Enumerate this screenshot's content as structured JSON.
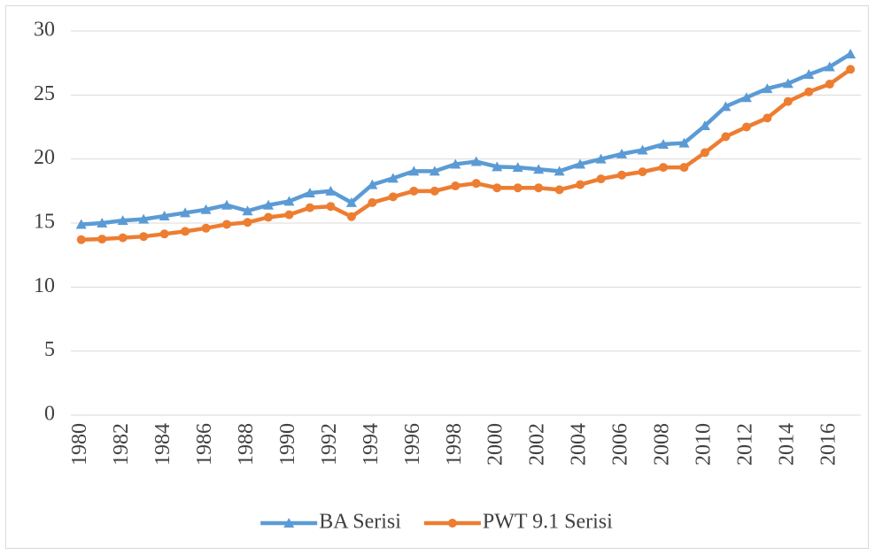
{
  "chart_data": {
    "type": "line",
    "categories": [
      "1980",
      null,
      "1982",
      null,
      "1984",
      null,
      "1986",
      null,
      "1988",
      null,
      "1990",
      null,
      "1992",
      null,
      "1994",
      null,
      "1996",
      null,
      "1998",
      null,
      "2000",
      null,
      "2002",
      null,
      "2004",
      null,
      "2006",
      null,
      "2008",
      null,
      "2010",
      null,
      "2012",
      null,
      "2014",
      null,
      "2016",
      null
    ],
    "series": [
      {
        "name": "BA Serisi",
        "color": "#5b9bd5",
        "marker": "triangle",
        "values": [
          14.9,
          15.0,
          15.2,
          15.3,
          15.55,
          15.8,
          16.05,
          16.4,
          15.95,
          16.4,
          16.7,
          17.35,
          17.5,
          16.6,
          18.0,
          18.5,
          19.05,
          19.05,
          19.6,
          19.8,
          19.4,
          19.35,
          19.2,
          19.05,
          19.6,
          20.0,
          20.4,
          20.7,
          21.15,
          21.25,
          22.6,
          24.1,
          24.8,
          25.5,
          25.9,
          26.6,
          27.2,
          28.2
        ]
      },
      {
        "name": "PWT 9.1 Serisi",
        "color": "#ed7d31",
        "marker": "circle",
        "values": [
          13.7,
          13.75,
          13.85,
          13.95,
          14.15,
          14.35,
          14.6,
          14.9,
          15.05,
          15.45,
          15.65,
          16.2,
          16.3,
          15.5,
          16.6,
          17.05,
          17.5,
          17.5,
          17.9,
          18.1,
          17.75,
          17.75,
          17.75,
          17.6,
          18.0,
          18.45,
          18.75,
          19.0,
          19.35,
          19.35,
          20.5,
          21.75,
          22.5,
          23.2,
          24.5,
          25.25,
          25.85,
          27.0
        ]
      }
    ],
    "ylim": [
      0,
      30
    ],
    "yticks": [
      0,
      5,
      10,
      15,
      20,
      25,
      30
    ],
    "grid": true,
    "legend": "bottom"
  }
}
